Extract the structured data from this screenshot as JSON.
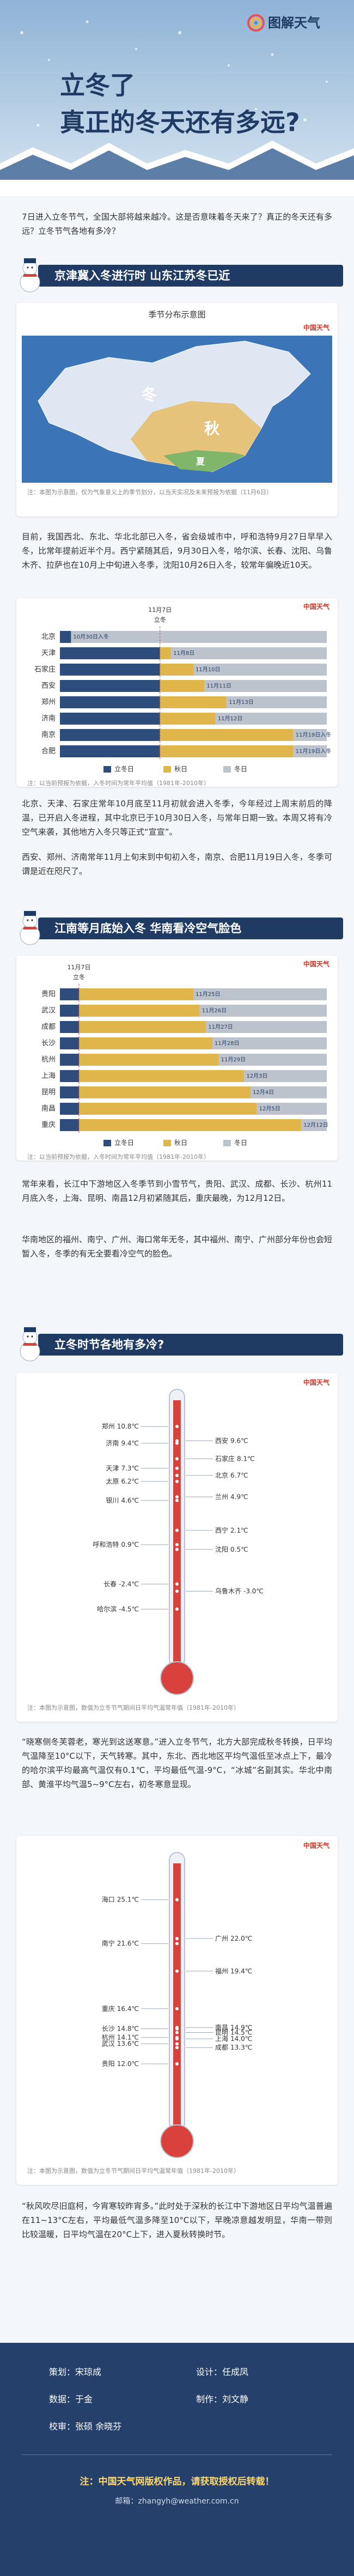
{
  "header": {
    "logo": "图解天气",
    "title_line1": "立冬了",
    "title_line2": "真正的冬天还有多远?"
  },
  "intro": "7日进入立冬节气，全国大部将越来越冷。这是否意味着冬天来了？真正的冬天还有多远？立冬节气各地有多冷？",
  "section1": {
    "heading": "京津冀入冬进行时 山东江苏冬已近",
    "map": {
      "title": "季节分布示意图",
      "brand": "中国天气",
      "labels": [
        "冬",
        "秋",
        "夏"
      ],
      "note": "注：本图为示意图，仅为气象意义上的季节划分，以当天实况及未来预报为依据（11月6日）"
    },
    "paragraph": "目前，我国西北、东北、华北北部已入冬，省会级城市中，呼和浩特9月27日早早入冬，比常年提前近半个月。西宁紧随其后，9月30日入冬，哈尔滨、长春、沈阳、乌鲁木齐、拉萨也在10月上中旬进入冬季，沈阳10月26日入冬，较常年偏晚近10天。",
    "chart": {
      "type": "bar",
      "brand": "中国天气",
      "categories": [
        "北京",
        "天津",
        "石家庄",
        "西安",
        "郑州",
        "济南",
        "南京",
        "合肥"
      ],
      "values": [
        -1,
        8,
        10,
        11,
        13,
        12,
        19,
        19
      ],
      "value_labels": [
        "10月30日入冬",
        "11月8日",
        "11月10日",
        "11月11日",
        "11月13日",
        "11月12日",
        "11月19日入冬",
        "11月19日入冬"
      ],
      "xlim": [
        -2,
        22
      ],
      "reference": {
        "value": 7,
        "label": "11月7日"
      },
      "reference_name": "立冬",
      "legend": [
        {
          "name": "立冬日",
          "color": "#2d4d7c"
        },
        {
          "name": "秋日",
          "color": "#e0b54a"
        },
        {
          "name": "冬日",
          "color": "#bcc3cc"
        }
      ],
      "note": "注：以当前预报为依据，入冬时间为常年平均值（1981年-2010年）"
    },
    "paragraphs": [
      "北京、天津、石家庄常年10月底至11月初就会进入冬季，今年经过上周末前后的降温，已开启入冬进程，其中北京已于10月30日入冬，与常年日期一致。本周又将有冷空气来袭，其他地方入冬只等正式“宣宣”。",
      "西安、郑州、济南常年11月上旬末到中旬初入冬，南京、合肥11月19日入冬，冬季可谓是近在咫尺了。"
    ]
  },
  "section2": {
    "heading": "江南等月底始入冬 华南看冷空气脸色",
    "chart": {
      "type": "bar",
      "brand": "中国天气",
      "categories": [
        "贵阳",
        "武汉",
        "成都",
        "长沙",
        "杭州",
        "上海",
        "昆明",
        "南昌",
        "重庆"
      ],
      "values": [
        25,
        26,
        27,
        28,
        29,
        33,
        34,
        35,
        42
      ],
      "value_labels": [
        "11月25日",
        "11月26日",
        "11月27日",
        "11月28日",
        "11月29日",
        "12月3日",
        "12月4日",
        "12月5日",
        "12月12日"
      ],
      "xlim": [
        4,
        46
      ],
      "reference": {
        "value": 7,
        "label": "11月7日"
      },
      "reference_name": "立冬",
      "legend": [
        {
          "name": "立冬日",
          "color": "#2d4d7c"
        },
        {
          "name": "秋日",
          "color": "#e0b54a"
        },
        {
          "name": "冬日",
          "color": "#bcc3cc"
        }
      ],
      "note": "注：以当前预报为依据，入冬时间为常年平均值（1981年-2010年）"
    },
    "paragraphs": [
      "常年来看，长江中下游地区入冬季节到小雪节气，贵阳、武汉、成都、长沙、杭州11月底入冬，上海、昆明、南昌12月初紧随其后，重庆最晚，为12月12日。",
      "华南地区的福州、南宁、广州、海口常年无冬，其中福州、南宁、广州部分年份也会短暂入冬，冬季的有无全要看冷空气的脸色。"
    ]
  },
  "section3": {
    "heading": "立冬时节各地有多冷?",
    "thermometer1": {
      "type": "thermometer",
      "brand": "中国天气",
      "categories": [
        "郑州",
        "西安",
        "济南",
        "石家庄",
        "天津",
        "北京",
        "太原",
        "兰州",
        "银川",
        "西宁",
        "呼和浩特",
        "沈阳",
        "长春",
        "乌鲁木齐",
        "哈尔滨"
      ],
      "values": [
        10.8,
        9.6,
        9.4,
        8.1,
        7.3,
        6.7,
        6.2,
        4.9,
        4.6,
        2.1,
        0.9,
        0.5,
        -2.4,
        -3.0,
        -4.5
      ],
      "value_labels": [
        "10.8℃",
        "9.6℃",
        "9.4℃",
        "8.1℃",
        "7.3℃",
        "6.7℃",
        "6.2℃",
        "4.9℃",
        "4.6℃",
        "2.1℃",
        "0.9℃",
        "0.5℃",
        "-2.4℃",
        "-3.0℃",
        "-4.5℃"
      ],
      "ylim": [
        -8,
        13
      ],
      "note": "注：本图为示意图，数值为立冬节气期间日平均气温常年值（1981年-2010年）"
    },
    "paragraph1": "“晓寒侧冬芙蓉老，寒光到这送寒意。”进入立冬节气，北方大部完成秋冬转换，日平均气温降至10°C以下，天气转寒。其中，东北、西北地区平均气温低至冰点上下，最冷的哈尔滨平均最高气温仅有0.1℃，平均最低气温-9°C，“冰城”名副其实。华北中南部、黄淮平均气温5~9°C左右，初冬寒意显现。",
    "thermometer2": {
      "type": "thermometer",
      "brand": "中国天气",
      "categories": [
        "海口",
        "广州",
        "南宁",
        "福州",
        "重庆",
        "南昌",
        "长沙",
        "昆明",
        "杭州",
        "上海",
        "武汉",
        "成都",
        "贵阳"
      ],
      "values": [
        25.1,
        22.0,
        21.6,
        19.4,
        16.4,
        14.9,
        14.8,
        14.5,
        14.1,
        14.0,
        13.6,
        13.3,
        12.0
      ],
      "value_labels": [
        "25.1℃",
        "22.0℃",
        "21.6℃",
        "19.4℃",
        "16.4℃",
        "14.9℃",
        "14.8℃",
        "14.5℃",
        "14.1℃",
        "14.0℃",
        "13.6℃",
        "13.3℃",
        "12.0℃"
      ],
      "ylim": [
        8,
        28
      ],
      "note": "注：本图为示意图，数值为立冬节气期间日平均气温常年值（1981年-2010年）"
    },
    "paragraph2": "“秋风吹尽旧庭柯，今宵寒较昨宵多。”此时处于深秋的长江中下游地区日平均气温普遍在11~13°C左右，平均最低气温多降至10°C以下，早晚凉意越发明显，华南一带则比较温暖，日平均气温在20°C上下，进入夏秋转换时节。"
  },
  "footer": {
    "credits": [
      {
        "role": "策划：",
        "name": "宋琼成"
      },
      {
        "role": "设计：",
        "name": "任成凤"
      },
      {
        "role": "数据：",
        "name": "于金"
      },
      {
        "role": "制作：",
        "name": "刘文静"
      },
      {
        "role": "校审：",
        "name": "张硕 余晓芬"
      }
    ],
    "notice": "注：中国天气网版权作品，请获取授权后转载！",
    "email": "邮箱：zhangyh@weather.com.cn"
  }
}
